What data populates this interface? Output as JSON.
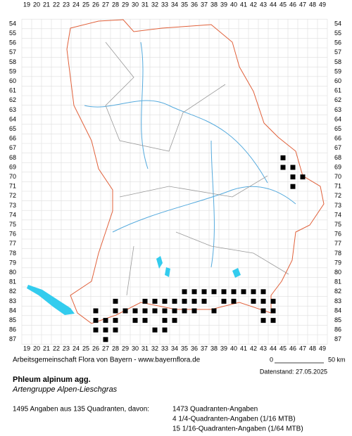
{
  "grid": {
    "columns": [
      19,
      20,
      21,
      22,
      23,
      24,
      25,
      26,
      27,
      28,
      29,
      30,
      31,
      32,
      33,
      34,
      35,
      36,
      37,
      38,
      39,
      40,
      41,
      42,
      43,
      44,
      45,
      46,
      47,
      48,
      49
    ],
    "rows": [
      54,
      55,
      56,
      57,
      58,
      59,
      60,
      61,
      62,
      63,
      64,
      65,
      66,
      67,
      68,
      69,
      70,
      71,
      72,
      73,
      74,
      75,
      76,
      77,
      78,
      79,
      80,
      81,
      82,
      83,
      84,
      85,
      86,
      87
    ]
  },
  "records": [
    [
      45,
      68
    ],
    [
      45,
      69
    ],
    [
      46,
      69
    ],
    [
      46,
      70
    ],
    [
      47,
      70
    ],
    [
      46,
      71
    ],
    [
      35,
      82
    ],
    [
      36,
      82
    ],
    [
      37,
      82
    ],
    [
      38,
      82
    ],
    [
      39,
      82
    ],
    [
      40,
      82
    ],
    [
      41,
      82
    ],
    [
      42,
      82
    ],
    [
      43,
      82
    ],
    [
      28,
      83
    ],
    [
      31,
      83
    ],
    [
      32,
      83
    ],
    [
      33,
      83
    ],
    [
      34,
      83
    ],
    [
      35,
      83
    ],
    [
      36,
      83
    ],
    [
      37,
      83
    ],
    [
      39,
      83
    ],
    [
      40,
      83
    ],
    [
      42,
      83
    ],
    [
      43,
      83
    ],
    [
      44,
      83
    ],
    [
      26,
      84
    ],
    [
      28,
      84
    ],
    [
      29,
      84
    ],
    [
      30,
      84
    ],
    [
      31,
      84
    ],
    [
      32,
      84
    ],
    [
      33,
      84
    ],
    [
      34,
      84
    ],
    [
      35,
      84
    ],
    [
      36,
      84
    ],
    [
      38,
      84
    ],
    [
      43,
      84
    ],
    [
      44,
      84
    ],
    [
      26,
      85
    ],
    [
      27,
      85
    ],
    [
      28,
      85
    ],
    [
      30,
      85
    ],
    [
      31,
      85
    ],
    [
      33,
      85
    ],
    [
      34,
      85
    ],
    [
      43,
      85
    ],
    [
      44,
      85
    ],
    [
      26,
      86
    ],
    [
      27,
      86
    ],
    [
      28,
      86
    ],
    [
      32,
      86
    ],
    [
      33,
      86
    ],
    [
      27,
      87
    ]
  ],
  "footer": {
    "credit": "Arbeitsgemeinschaft Flora von Bayern - www.bayernflora.de",
    "scale_start": "0",
    "scale_end": "50 km",
    "date": "Datenstand: 27.05.2025"
  },
  "species": {
    "name": "Phleum alpinum agg.",
    "group": "Artengruppe Alpen-Lieschgras"
  },
  "stats": {
    "summary": "1495 Angaben aus 135 Quadranten, davon:",
    "quadrant": "1473 Quadranten-Angaben",
    "quarter": "4 1/4-Quadranten-Angaben (1/16 MTB)",
    "sixteenth": "15 1/16-Quadranten-Angaben (1/64 MTB)"
  }
}
